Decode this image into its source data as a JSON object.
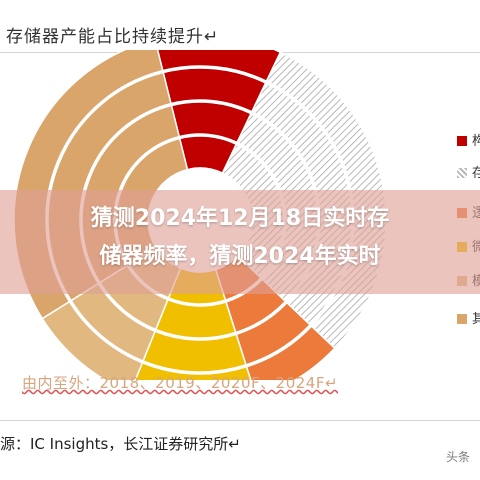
{
  "title": "存储器产能占比持续提升↵",
  "chart_data": {
    "type": "donut",
    "subtitle": "由内至外：2018、2019、2020F、2024F↵",
    "source": "源：IC Insights，长江证券研究所↵",
    "rings_inner_to_outer": [
      "2018",
      "2019",
      "2020F",
      "2024F"
    ],
    "legend_visible_fragments": [
      "■ 构",
      "▨ 存",
      "■ 逻",
      "■ 微",
      "■ 模",
      "■ 其"
    ],
    "series_colors": [
      "#c00000",
      "#bfbfbf",
      "#ec7a3a",
      "#f0c000",
      "#e0b880",
      "#d9a56a"
    ],
    "series_patterns": [
      "solid",
      "hatched",
      "solid",
      "solid",
      "solid",
      "solid"
    ],
    "segment_shares_pct": [
      11,
      30,
      8,
      11,
      10,
      30
    ]
  },
  "overlay": {
    "text": "猜测2024年12月18日实时存\n储器频率，猜测2024年实时"
  },
  "watermark": "头条"
}
